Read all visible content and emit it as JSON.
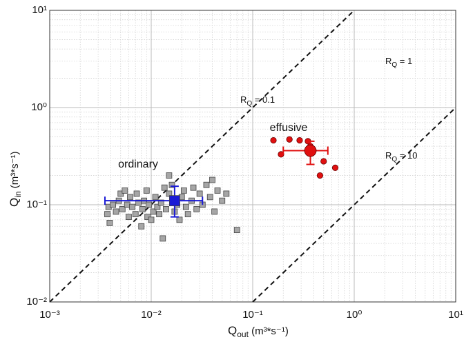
{
  "chart_data": {
    "type": "scatter",
    "x_label": {
      "text": "Q",
      "subscript": "out",
      "rest": " (m³*s⁻¹)"
    },
    "y_label": {
      "text": "Q",
      "subscript": "in",
      "rest": " (m³*s⁻¹)"
    },
    "xlim": [
      0.001,
      10
    ],
    "ylim": [
      0.01,
      10
    ],
    "xscale": "log",
    "yscale": "log",
    "grid": true,
    "minor_grid": true,
    "xticks": [
      {
        "value": 0.001,
        "label": "10⁻³"
      },
      {
        "value": 0.01,
        "label": "10⁻²"
      },
      {
        "value": 0.1,
        "label": "10⁻¹"
      },
      {
        "value": 1,
        "label": "10⁰"
      },
      {
        "value": 10,
        "label": "10¹"
      }
    ],
    "yticks": [
      {
        "value": 0.01,
        "label": "10⁻²"
      },
      {
        "value": 0.1,
        "label": "10⁻¹"
      },
      {
        "value": 1,
        "label": "10⁰"
      },
      {
        "value": 10,
        "label": "10¹"
      }
    ],
    "series": [
      {
        "color": "#a6a6a6",
        "marker": "square",
        "x": [
          0.0037,
          0.0038,
          0.0039,
          0.0042,
          0.0045,
          0.0048,
          0.005,
          0.0052,
          0.0055,
          0.0058,
          0.006,
          0.0062,
          0.0065,
          0.007,
          0.0072,
          0.0075,
          0.008,
          0.0082,
          0.0085,
          0.009,
          0.0092,
          0.0095,
          0.01,
          0.0105,
          0.011,
          0.0115,
          0.012,
          0.0125,
          0.013,
          0.0135,
          0.014,
          0.015,
          0.015,
          0.016,
          0.017,
          0.018,
          0.019,
          0.02,
          0.021,
          0.022,
          0.023,
          0.025,
          0.026,
          0.028,
          0.03,
          0.032,
          0.035,
          0.038,
          0.04,
          0.042,
          0.045,
          0.05,
          0.055,
          0.07
        ],
        "values": [
          0.08,
          0.095,
          0.065,
          0.1,
          0.085,
          0.11,
          0.13,
          0.09,
          0.14,
          0.1,
          0.075,
          0.12,
          0.095,
          0.08,
          0.13,
          0.105,
          0.06,
          0.09,
          0.11,
          0.14,
          0.075,
          0.1,
          0.07,
          0.085,
          0.12,
          0.095,
          0.08,
          0.105,
          0.045,
          0.15,
          0.09,
          0.13,
          0.2,
          0.16,
          0.085,
          0.1,
          0.07,
          0.12,
          0.14,
          0.095,
          0.08,
          0.11,
          0.15,
          0.09,
          0.13,
          0.1,
          0.16,
          0.12,
          0.18,
          0.085,
          0.14,
          0.11,
          0.13,
          0.055
        ],
        "mean": {
          "color": "#1a1ad6",
          "marker": "square",
          "x": 0.017,
          "y": 0.11,
          "x_low": 0.0035,
          "x_high": 0.032,
          "y_low": 0.075,
          "y_high": 0.155
        }
      },
      {
        "color": "#e01010",
        "marker": "circle",
        "x": [
          0.16,
          0.19,
          0.23,
          0.29,
          0.35,
          0.37,
          0.46,
          0.5,
          0.65
        ],
        "values": [
          0.46,
          0.33,
          0.47,
          0.46,
          0.45,
          0.4,
          0.2,
          0.28,
          0.24
        ],
        "mean": {
          "color": "#e01010",
          "marker": "circle",
          "x": 0.37,
          "y": 0.36,
          "x_low": 0.2,
          "x_high": 0.55,
          "y_low": 0.26,
          "y_high": 0.45
        }
      }
    ],
    "ratio_lines": [
      {
        "x": [
          0.001,
          1
        ],
        "y": [
          0.01,
          10
        ]
      },
      {
        "x": [
          0.1,
          10
        ],
        "y": [
          0.01,
          1
        ]
      }
    ],
    "annotations": [
      {
        "text": "ordinary"
      },
      {
        "text": "effusive"
      },
      {
        "text": "R",
        "subscript": "Q",
        "rest": " = 0.1"
      },
      {
        "text": "R",
        "subscript": "Q",
        "rest": " = 1"
      },
      {
        "text": "R",
        "subscript": "Q",
        "rest": " = 10"
      }
    ]
  }
}
